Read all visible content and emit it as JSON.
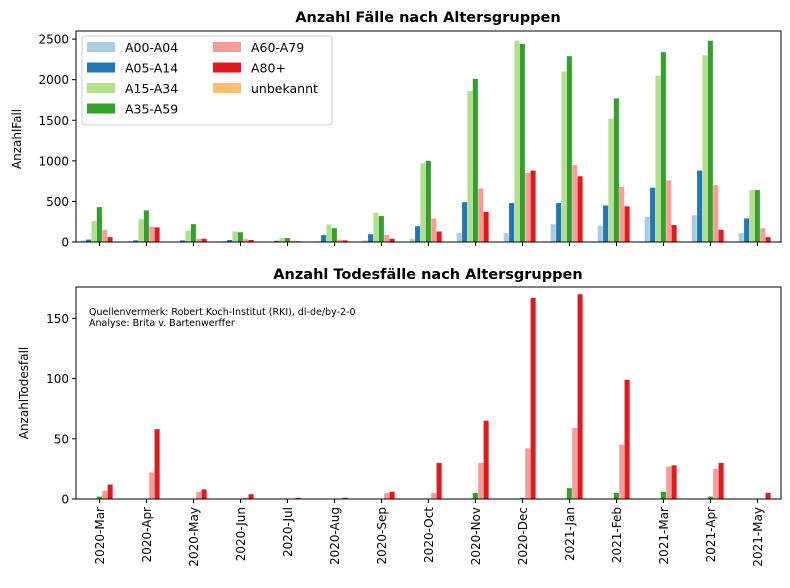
{
  "months": [
    "2020-Mar",
    "2020-Apr",
    "2020-May",
    "2020-Jun",
    "2020-Jul",
    "2020-Aug",
    "2020-Sep",
    "2020-Oct",
    "2020-Nov",
    "2020-Dec",
    "2021-Jan",
    "2021-Feb",
    "2021-Mar",
    "2021-Apr",
    "2021-May"
  ],
  "groups": [
    {
      "name": "A00-A04",
      "color": "#a6cee3"
    },
    {
      "name": "A05-A14",
      "color": "#1f78b4"
    },
    {
      "name": "A15-A34",
      "color": "#b2df8a"
    },
    {
      "name": "A35-A59",
      "color": "#33a02c"
    },
    {
      "name": "A60-A79",
      "color": "#fb9a99"
    },
    {
      "name": "A80+",
      "color": "#e31a1c"
    },
    {
      "name": "unbekannt",
      "color": "#fdbf6f"
    }
  ],
  "source_note": {
    "line1": "Quellenvermerk: Robert Koch-Institut (RKI), dl-de/by-2-0",
    "line2": "Analyse: Brita v. Bartenwerffer"
  },
  "chart_data": [
    {
      "type": "bar",
      "title": "Anzahl Fälle nach Altersgruppen",
      "xlabel": "",
      "ylabel": "AnzahlFall",
      "ylim": [
        0,
        2600
      ],
      "yticks": [
        0,
        500,
        1000,
        1500,
        2000,
        2500
      ],
      "legend": "top-left",
      "series": [
        {
          "name": "A00-A04",
          "values": [
            20,
            10,
            5,
            10,
            5,
            10,
            20,
            40,
            110,
            110,
            220,
            200,
            310,
            330,
            110
          ]
        },
        {
          "name": "A05-A14",
          "values": [
            30,
            20,
            20,
            25,
            15,
            85,
            95,
            195,
            490,
            480,
            480,
            450,
            670,
            880,
            290
          ]
        },
        {
          "name": "A15-A34",
          "values": [
            260,
            280,
            140,
            130,
            50,
            215,
            360,
            970,
            1860,
            2480,
            2100,
            1520,
            2050,
            2300,
            640
          ]
        },
        {
          "name": "A35-A59",
          "values": [
            430,
            390,
            220,
            120,
            50,
            170,
            320,
            1000,
            2010,
            2440,
            2290,
            1770,
            2340,
            2480,
            640
          ]
        },
        {
          "name": "A60-A79",
          "values": [
            150,
            190,
            40,
            35,
            15,
            30,
            85,
            290,
            660,
            850,
            950,
            680,
            760,
            700,
            170
          ]
        },
        {
          "name": "A80+",
          "values": [
            60,
            180,
            40,
            25,
            10,
            20,
            40,
            130,
            370,
            880,
            810,
            440,
            210,
            150,
            60
          ]
        },
        {
          "name": "unbekannt",
          "values": [
            0,
            0,
            0,
            0,
            0,
            0,
            0,
            0,
            0,
            0,
            0,
            0,
            0,
            0,
            0
          ]
        }
      ]
    },
    {
      "type": "bar",
      "title": "Anzahl Todesfälle nach Altersgruppen",
      "xlabel": "",
      "ylabel": "AnzahlTodesfall",
      "ylim": [
        0,
        176
      ],
      "yticks": [
        0,
        50,
        100,
        150
      ],
      "series": [
        {
          "name": "A00-A04",
          "values": [
            0,
            0,
            0,
            0,
            0,
            0,
            0,
            0,
            0,
            0,
            0,
            0,
            0,
            0,
            0
          ]
        },
        {
          "name": "A05-A14",
          "values": [
            0,
            0,
            0,
            0,
            0,
            0,
            0,
            0,
            0,
            0,
            0,
            0,
            0,
            0,
            0
          ]
        },
        {
          "name": "A15-A34",
          "values": [
            0,
            0,
            0,
            0,
            0,
            0,
            0,
            0,
            0,
            0,
            0,
            0,
            0,
            0,
            0
          ]
        },
        {
          "name": "A35-A59",
          "values": [
            2,
            0,
            0,
            0,
            0,
            0,
            0,
            0,
            5,
            1,
            9,
            5,
            6,
            2,
            0
          ]
        },
        {
          "name": "A60-A79",
          "values": [
            7,
            22,
            6,
            1,
            0,
            0,
            5,
            5,
            30,
            42,
            59,
            45,
            27,
            25,
            0
          ]
        },
        {
          "name": "A80+",
          "values": [
            12,
            58,
            8,
            4,
            1,
            1,
            6,
            30,
            65,
            167,
            170,
            99,
            28,
            30,
            5
          ]
        },
        {
          "name": "unbekannt",
          "values": [
            0,
            0,
            0,
            0,
            0,
            0,
            0,
            0,
            0,
            0,
            0,
            0,
            0,
            0,
            0
          ]
        }
      ]
    }
  ]
}
